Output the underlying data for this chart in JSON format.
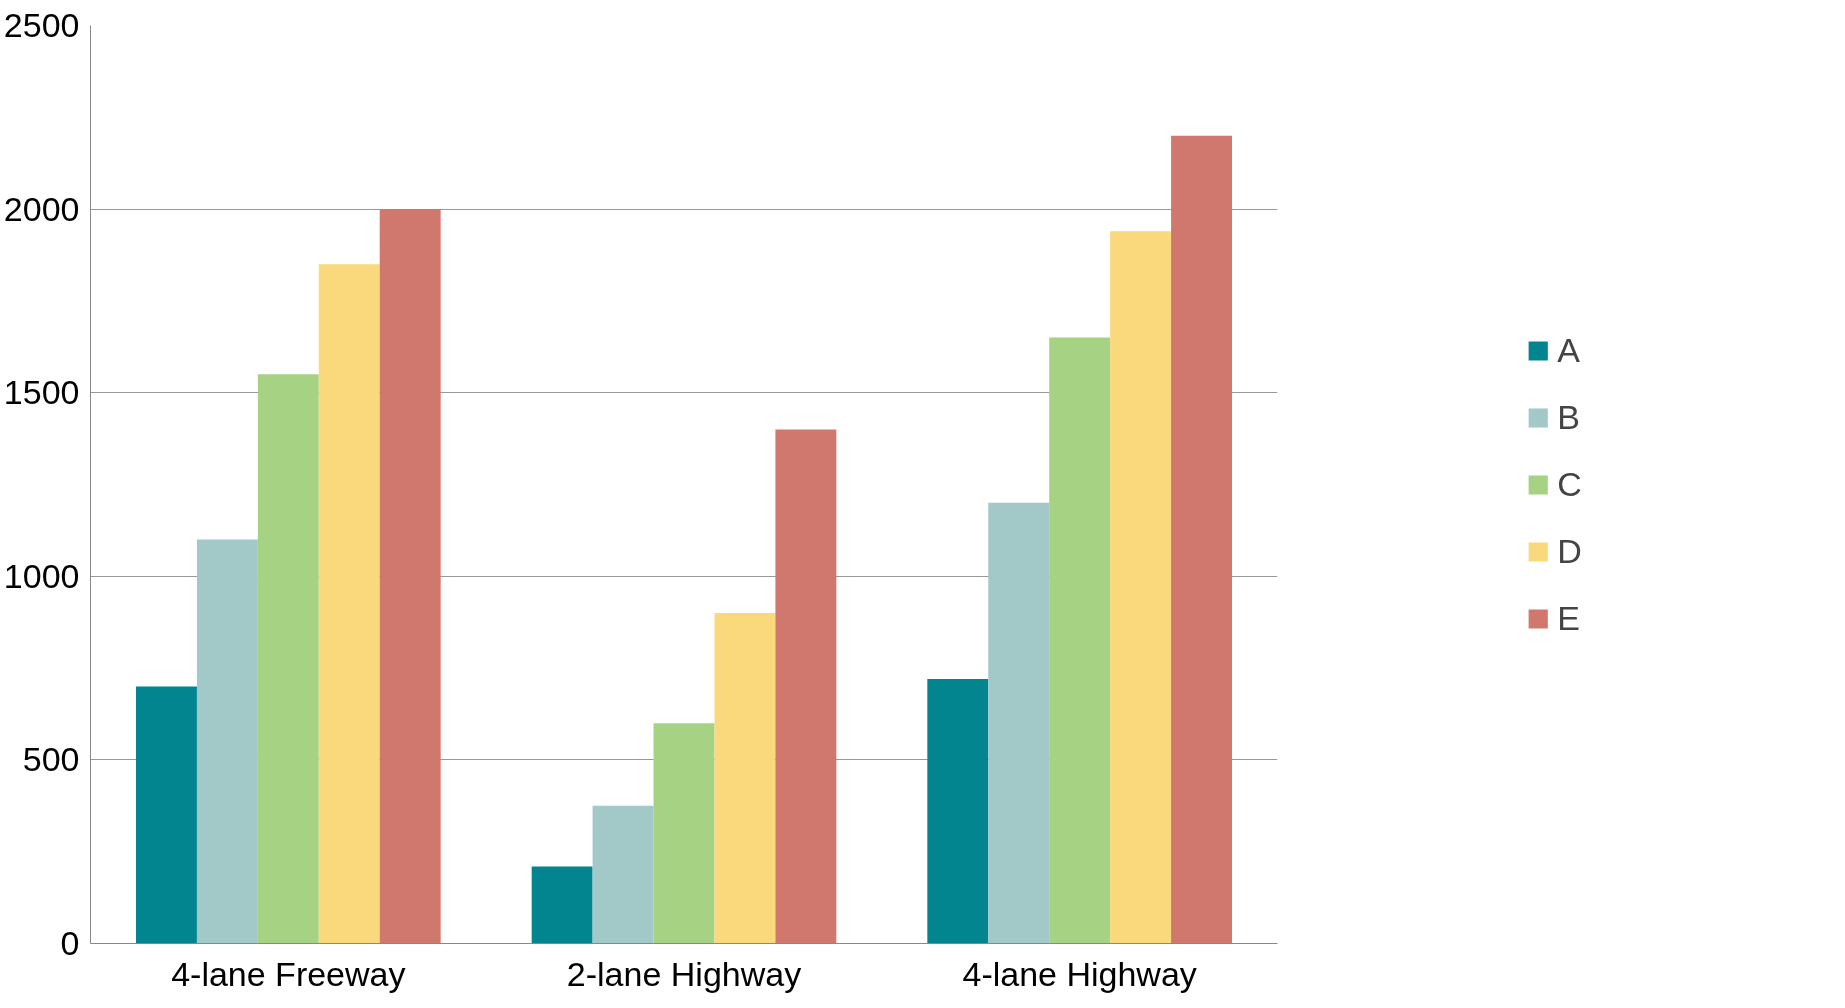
{
  "chart_data": {
    "type": "bar",
    "categories": [
      "4-lane Freeway",
      "2-lane Highway",
      "4-lane Highway"
    ],
    "series": [
      {
        "name": "A",
        "color": "#03858f",
        "values": [
          700,
          210,
          720
        ]
      },
      {
        "name": "B",
        "color": "#a2c8c8",
        "values": [
          1100,
          375,
          1200
        ]
      },
      {
        "name": "C",
        "color": "#a6d283",
        "values": [
          1550,
          600,
          1650
        ]
      },
      {
        "name": "D",
        "color": "#f9d97c",
        "values": [
          1850,
          900,
          1940
        ]
      },
      {
        "name": "E",
        "color": "#d0786e",
        "values": [
          2000,
          1400,
          2200
        ]
      }
    ],
    "ylim": [
      0,
      2500
    ],
    "yticks": [
      0,
      500,
      1000,
      1500,
      2000,
      2500
    ],
    "grid": "y",
    "legend": "right"
  }
}
